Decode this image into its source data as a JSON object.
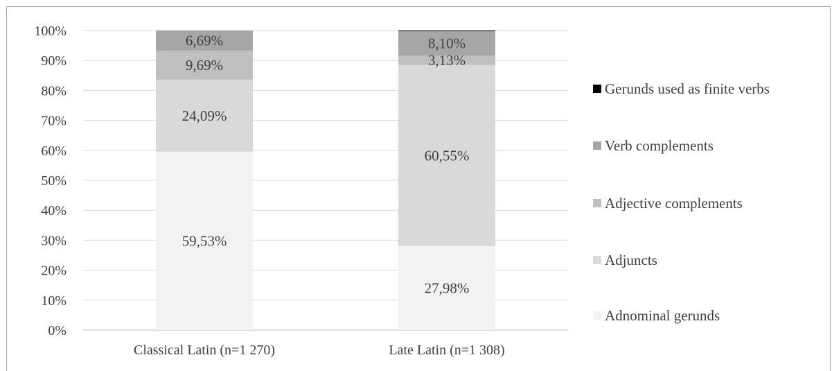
{
  "chart_data": {
    "type": "bar",
    "stacked": true,
    "percent_stacked": true,
    "categories": [
      "Classical Latin (n=1 270)",
      "Late Latin (n=1 308)"
    ],
    "series": [
      {
        "name": "Adnominal gerunds",
        "values": [
          59.53,
          27.98
        ],
        "labels": [
          "59,53%",
          "27,98%"
        ],
        "color": "#f2f2f2"
      },
      {
        "name": "Adjuncts",
        "values": [
          24.09,
          60.55
        ],
        "labels": [
          "24,09%",
          "60,55%"
        ],
        "color": "#d9d9d9"
      },
      {
        "name": "Adjective complements",
        "values": [
          9.69,
          3.13
        ],
        "labels": [
          "9,69%",
          "3,13%"
        ],
        "color": "#bfbfbf"
      },
      {
        "name": "Verb complements",
        "values": [
          6.69,
          8.1
        ],
        "labels": [
          "6,69%",
          "8,10%"
        ],
        "color": "#a6a6a6"
      },
      {
        "name": "Gerunds used as finite verbs",
        "values": [
          0.0,
          0.24
        ],
        "labels": [
          "",
          ""
        ],
        "color": "#000000"
      }
    ],
    "yticks": [
      "0%",
      "10%",
      "20%",
      "30%",
      "40%",
      "50%",
      "60%",
      "70%",
      "80%",
      "90%",
      "100%"
    ],
    "ylim": [
      0,
      100
    ],
    "grid": true,
    "legend_position": "right",
    "title": "",
    "xlabel": "",
    "ylabel": ""
  }
}
